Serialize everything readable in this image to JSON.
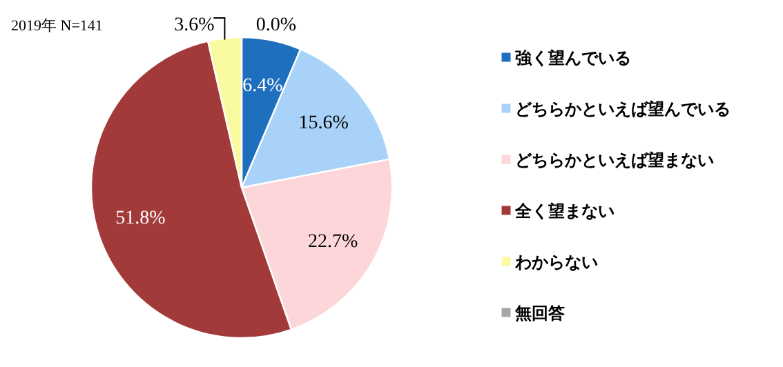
{
  "chart_data": {
    "type": "pie",
    "title": "2019年  N=141",
    "categories": [
      "強く望んでいる",
      "どちらかといえば望んでいる",
      "どちらかといえば望まない",
      "全く望まない",
      "わからない",
      "無回答"
    ],
    "values": [
      6.4,
      15.6,
      22.7,
      51.8,
      3.6,
      0.0
    ],
    "colors": [
      "#1f6fbf",
      "#a8d2f7",
      "#fcd6d8",
      "#a33a3a",
      "#fafaa0",
      "#a6a6a6"
    ],
    "value_labels": [
      "6.4%",
      "15.6%",
      "22.7%",
      "51.8%",
      "3.6%",
      "0.0%"
    ],
    "legend": "right"
  }
}
